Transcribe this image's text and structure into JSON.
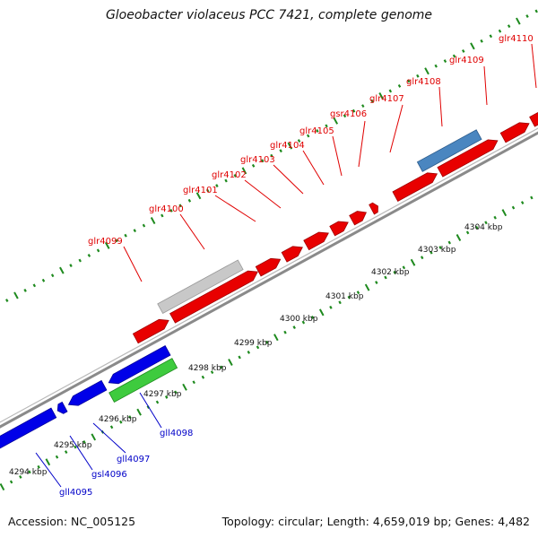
{
  "title": "Gloeobacter violaceus PCC 7421, complete genome",
  "footer": {
    "accession": "Accession: NC_005125",
    "summary": "Topology: circular; Length: 4,659,019 bp; Genes: 4,482"
  },
  "colors": {
    "forward_gene": "#e80000",
    "reverse_gene": "#0000e8",
    "highlight_blue_gene": "#4a86c0",
    "highlight_grey_gene": "#c8c8c8",
    "highlight_green_gene": "#3ecb3e",
    "forward_label": "#e00000",
    "reverse_label": "#0000c8",
    "backbone": "#8a8a8a",
    "tick": "#1e8a1e"
  },
  "scale_labels": [
    "4294 kbp",
    "4295 kbp",
    "4296 kbp",
    "4297 kbp",
    "4298 kbp",
    "4299 kbp",
    "4300 kbp",
    "4301 kbp",
    "4302 kbp",
    "4303 kbp",
    "4304 kbp"
  ],
  "forward_gene_labels": [
    "glr4099",
    "glr4100",
    "glr4101",
    "glr4102",
    "glr4103",
    "glr4104",
    "glr4105",
    "gsr4106",
    "glr4107",
    "glr4108",
    "glr4109",
    "glr4110"
  ],
  "reverse_gene_labels": [
    "gll4095",
    "gsl4096",
    "gll4097",
    "gll4098"
  ]
}
